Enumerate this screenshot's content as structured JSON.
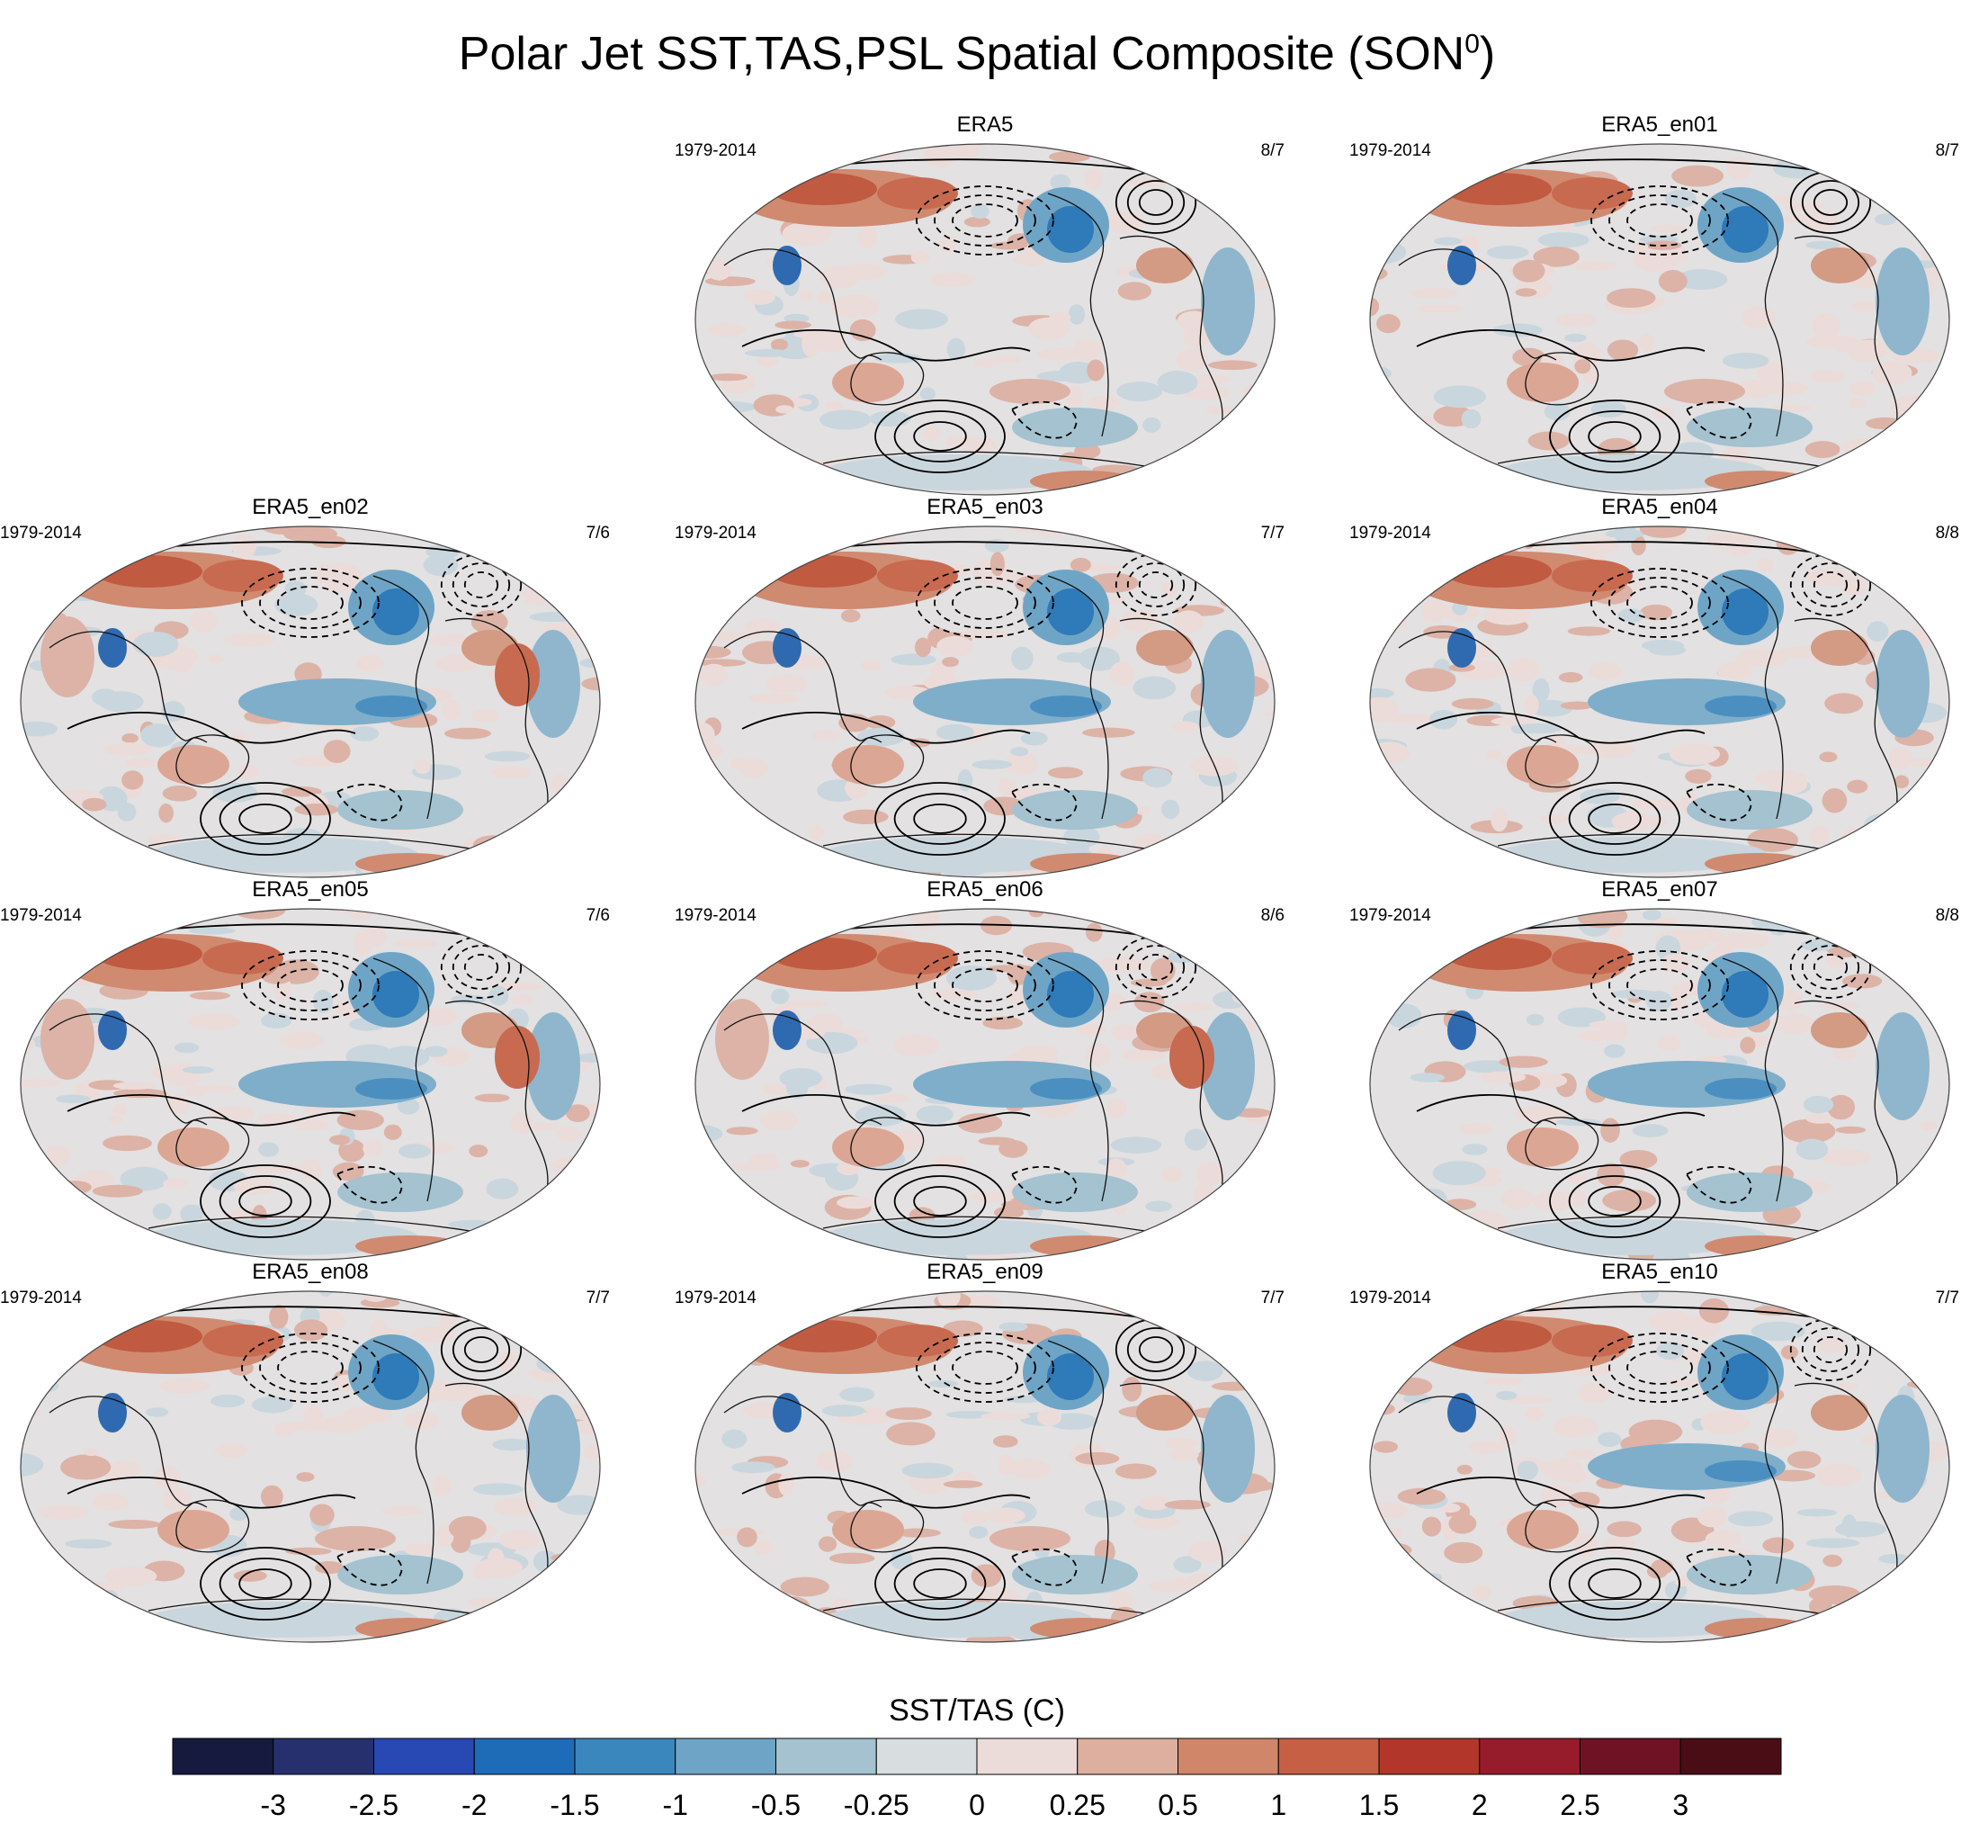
{
  "title": "Polar Jet SST,TAS,PSL Spatial Composite (SON",
  "title_superscript": "0",
  "title_suffix": ")",
  "panels": [
    {
      "name": "ERA5",
      "period": "1979-2014",
      "ratio": "8/7",
      "pattern": "a"
    },
    {
      "name": "ERA5_en01",
      "period": "1979-2014",
      "ratio": "8/7",
      "pattern": "a"
    },
    {
      "name": "ERA5_en02",
      "period": "1979-2014",
      "ratio": "7/6",
      "pattern": "b"
    },
    {
      "name": "ERA5_en03",
      "period": "1979-2014",
      "ratio": "7/7",
      "pattern": "c"
    },
    {
      "name": "ERA5_en04",
      "period": "1979-2014",
      "ratio": "8/8",
      "pattern": "c"
    },
    {
      "name": "ERA5_en05",
      "period": "1979-2014",
      "ratio": "7/6",
      "pattern": "b"
    },
    {
      "name": "ERA5_en06",
      "period": "1979-2014",
      "ratio": "8/6",
      "pattern": "b"
    },
    {
      "name": "ERA5_en07",
      "period": "1979-2014",
      "ratio": "8/8",
      "pattern": "c"
    },
    {
      "name": "ERA5_en08",
      "period": "1979-2014",
      "ratio": "7/7",
      "pattern": "a"
    },
    {
      "name": "ERA5_en09",
      "period": "1979-2014",
      "ratio": "7/7",
      "pattern": "a"
    },
    {
      "name": "ERA5_en10",
      "period": "1979-2014",
      "ratio": "7/7",
      "pattern": "c"
    }
  ],
  "colorbar": {
    "title": "SST/TAS (C)",
    "labels": [
      "-3",
      "-2.5",
      "-2",
      "-1.5",
      "-1",
      "-0.5",
      "-0.25",
      "0",
      "0.25",
      "0.5",
      "1",
      "1.5",
      "2",
      "2.5",
      "3"
    ],
    "colors": [
      "#161a3f",
      "#27306e",
      "#2848b4",
      "#1c6cb7",
      "#3a87be",
      "#6ea5c6",
      "#a4c2cf",
      "#d8dde0",
      "#ecdcd9",
      "#ddaf9e",
      "#cf8669",
      "#c65f44",
      "#b2372a",
      "#961b2b",
      "#6e1224",
      "#4a0d16"
    ]
  }
}
